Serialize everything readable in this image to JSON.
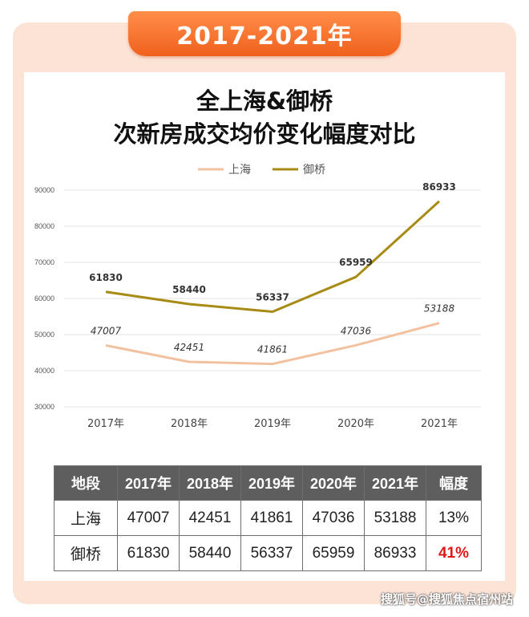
{
  "banner": "2017-2021年",
  "chart_data": {
    "type": "line",
    "title": [
      "全上海&御桥",
      "次新房成交均价变化幅度对比"
    ],
    "categories": [
      "2017年",
      "2018年",
      "2019年",
      "2020年",
      "2021年"
    ],
    "series": [
      {
        "name": "上海",
        "values": [
          47007,
          42451,
          41861,
          47036,
          53188
        ],
        "color": "#f2c2a0",
        "label_style": "italic"
      },
      {
        "name": "御桥",
        "values": [
          61830,
          58440,
          56337,
          65959,
          86933
        ],
        "color": "#a88b14",
        "label_style": "bold"
      }
    ],
    "ylim": [
      30000,
      90000
    ],
    "yticks": [
      "30000",
      "40000",
      "50000",
      "60000",
      "70000",
      "80000",
      "90000"
    ],
    "grid": true,
    "legend": "top-center"
  },
  "table": {
    "headers": [
      "地段",
      "2017年",
      "2018年",
      "2019年",
      "2020年",
      "2021年",
      "幅度"
    ],
    "rows": [
      [
        "上海",
        "47007",
        "42451",
        "41861",
        "47036",
        "53188",
        "13%"
      ],
      [
        "御桥",
        "61830",
        "58440",
        "56337",
        "65959",
        "86933",
        "41%"
      ]
    ],
    "highlight_color": "#e01818"
  },
  "watermark": "搜狐号@搜狐焦点宿州站"
}
